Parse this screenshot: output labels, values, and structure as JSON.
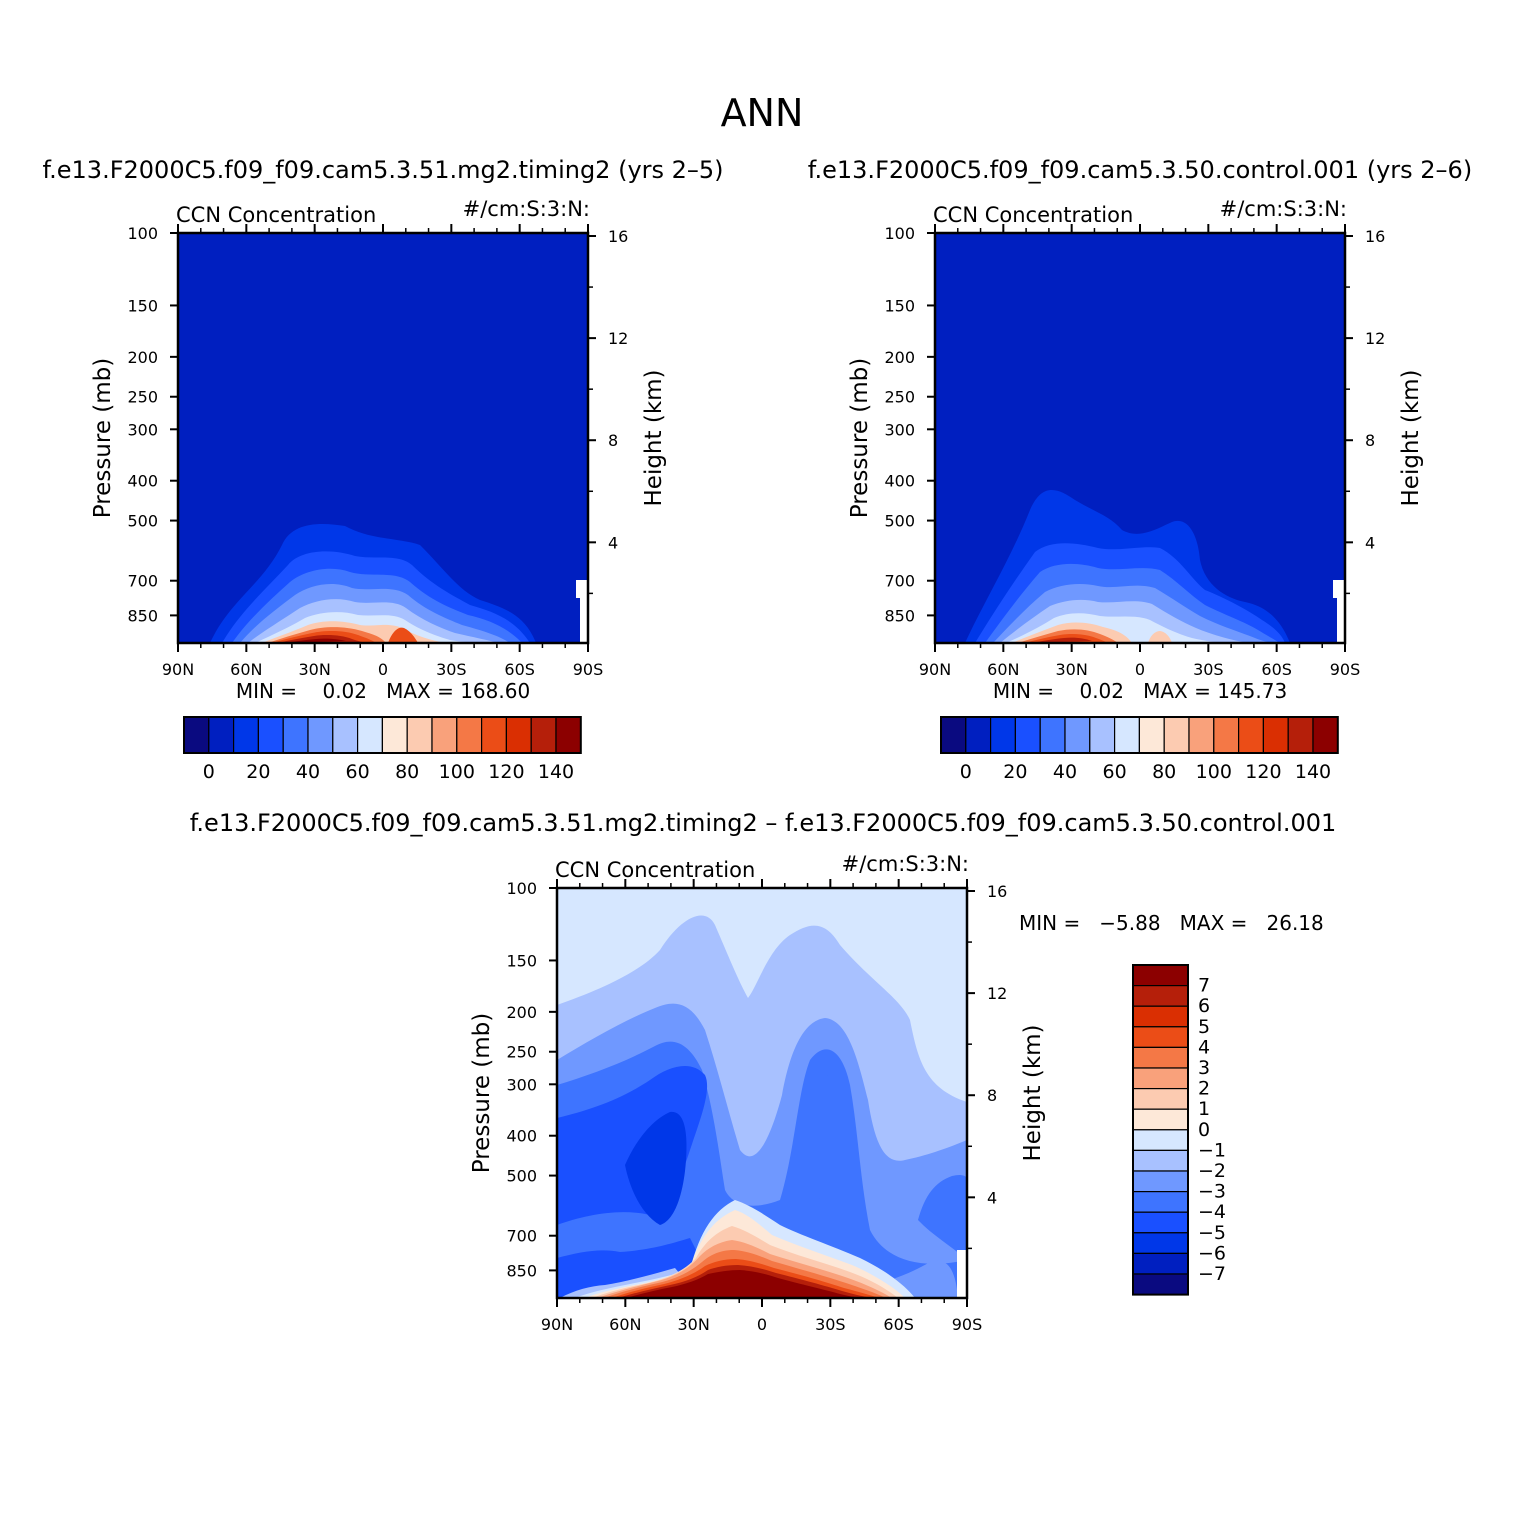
{
  "page_title": "ANN",
  "colors": {
    "bg": "#ffffff",
    "axis": "#000000",
    "field_palette": [
      "#0a0a80",
      "#001fc0",
      "#0037e8",
      "#1a50ff",
      "#3e74ff",
      "#6f98ff",
      "#a8c1ff",
      "#d6e7ff",
      "#fde8d8",
      "#fccbb1",
      "#f9a17b",
      "#f47846",
      "#eb4d17",
      "#da2f02",
      "#b51f0a",
      "#8c0000"
    ],
    "diff_palette": [
      "#0a0a80",
      "#001fc0",
      "#0037e8",
      "#1a50ff",
      "#3e74ff",
      "#6f98ff",
      "#a8c1ff",
      "#d6e7ff",
      "#fde8d8",
      "#fccbb1",
      "#f9a17b",
      "#f47846",
      "#eb4d17",
      "#da2f02",
      "#b51f0a",
      "#8c0000"
    ]
  },
  "panels": [
    {
      "id": "model",
      "case_title": "f.e13.F2000C5.f09_f09.cam5.3.51.mg2.timing2 (yrs 2–5)",
      "left_string": "CCN Concentration",
      "right_string": "#/cm:S:3:N:",
      "stats": "MIN =    0.02   MAX = 168.60",
      "colorbar_labels": [
        "0",
        "20",
        "40",
        "60",
        "80",
        "100",
        "120",
        "140"
      ]
    },
    {
      "id": "control",
      "case_title": "f.e13.F2000C5.f09_f09.cam5.3.50.control.001 (yrs 2–6)",
      "left_string": "CCN Concentration",
      "right_string": "#/cm:S:3:N:",
      "stats": "MIN =    0.02   MAX = 145.73",
      "colorbar_labels": [
        "0",
        "20",
        "40",
        "60",
        "80",
        "100",
        "120",
        "140"
      ]
    },
    {
      "id": "difference",
      "case_title": "f.e13.F2000C5.f09_f09.cam5.3.51.mg2.timing2 – f.e13.F2000C5.f09_f09.cam5.3.50.control.001",
      "left_string": "CCN Concentration",
      "right_string": "#/cm:S:3:N:",
      "stats": "MIN =   −5.88   MAX =   26.18",
      "colorbar_labels": [
        "7",
        "6",
        "5",
        "4",
        "3",
        "2",
        "1",
        "0",
        "−1",
        "−2",
        "−3",
        "−4",
        "−5",
        "−6",
        "−7"
      ]
    }
  ],
  "axes": {
    "y_left_label": "Pressure (mb)",
    "y_right_label": "Height (km)",
    "pressure_ticks": [
      "100",
      "150",
      "200",
      "250",
      "300",
      "400",
      "500",
      "700",
      "850"
    ],
    "height_ticks": [
      "16",
      "12",
      "8",
      "4"
    ],
    "lat_ticks": [
      "90N",
      "60N",
      "30N",
      "0",
      "30S",
      "60S",
      "90S"
    ]
  },
  "chart_data": [
    {
      "type": "heatmap",
      "title": "CCN Concentration",
      "units": "#/cm:S:3:N:",
      "xlabel": "",
      "ylabel": "Pressure (mb)",
      "y2label": "Height (km)",
      "x_ticks": [
        "90N",
        "60N",
        "30N",
        "0",
        "30S",
        "60S",
        "90S"
      ],
      "y_ticks": [
        100,
        150,
        200,
        250,
        300,
        400,
        500,
        700,
        850
      ],
      "y2_ticks": [
        16,
        12,
        8,
        4
      ],
      "y_scale": "log",
      "min": 0.02,
      "max": 168.6,
      "contour_levels": [
        0,
        10,
        20,
        30,
        40,
        50,
        60,
        70,
        80,
        90,
        100,
        110,
        120,
        130,
        140
      ],
      "description_values": {
        "max_region_lat": "30N",
        "max_region_level": "850"
      }
    },
    {
      "type": "heatmap",
      "title": "CCN Concentration",
      "units": "#/cm:S:3:N:",
      "xlabel": "",
      "ylabel": "Pressure (mb)",
      "y2label": "Height (km)",
      "x_ticks": [
        "90N",
        "60N",
        "30N",
        "0",
        "30S",
        "60S",
        "90S"
      ],
      "y_ticks": [
        100,
        150,
        200,
        250,
        300,
        400,
        500,
        700,
        850
      ],
      "y2_ticks": [
        16,
        12,
        8,
        4
      ],
      "y_scale": "log",
      "min": 0.02,
      "max": 145.73,
      "contour_levels": [
        0,
        10,
        20,
        30,
        40,
        50,
        60,
        70,
        80,
        90,
        100,
        110,
        120,
        130,
        140
      ],
      "description_values": {
        "max_region_lat": "30N",
        "max_region_level": "850"
      }
    },
    {
      "type": "heatmap",
      "title": "CCN Concentration",
      "units": "#/cm:S:3:N:",
      "xlabel": "",
      "ylabel": "Pressure (mb)",
      "y2label": "Height (km)",
      "x_ticks": [
        "90N",
        "60N",
        "30N",
        "0",
        "30S",
        "60S",
        "90S"
      ],
      "y_ticks": [
        100,
        150,
        200,
        250,
        300,
        400,
        500,
        700,
        850
      ],
      "y2_ticks": [
        16,
        12,
        8,
        4
      ],
      "y_scale": "log",
      "min": -5.88,
      "max": 26.18,
      "contour_levels": [
        -7,
        -6,
        -5,
        -4,
        -3,
        -2,
        -1,
        0,
        1,
        2,
        3,
        4,
        5,
        6,
        7
      ]
    }
  ]
}
